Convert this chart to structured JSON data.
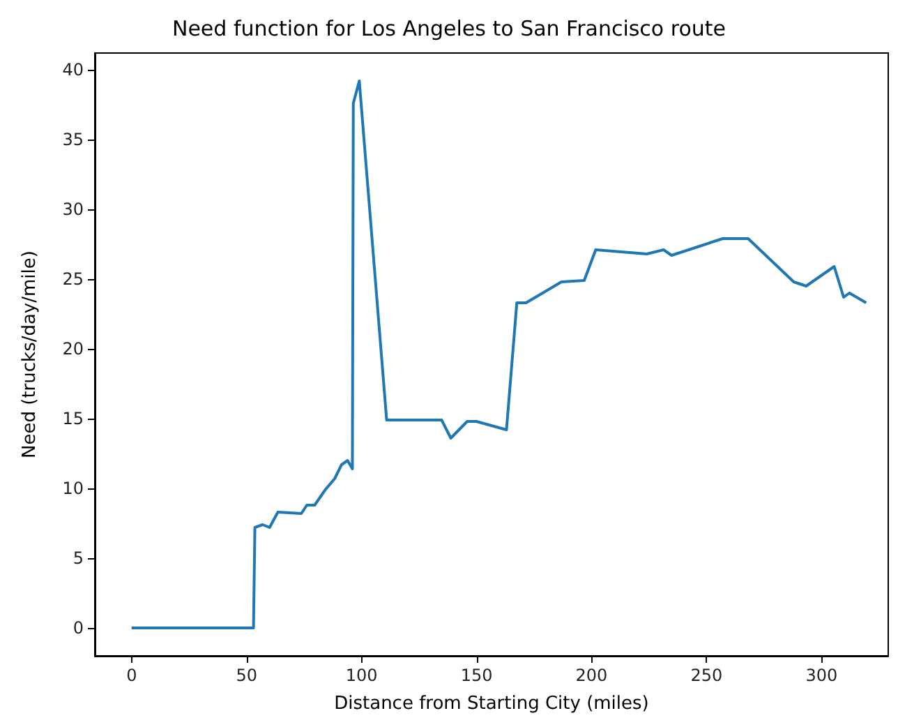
{
  "chart_data": {
    "type": "line",
    "title": "Need function for Los Angeles to San Francisco route",
    "xlabel": "Distance from Starting City (miles)",
    "ylabel": "Need (trucks/day/mile)",
    "x": [
      0,
      53,
      53.6,
      57,
      60,
      63.6,
      73.8,
      76.2,
      79.6,
      84.2,
      88.3,
      91.3,
      93.9,
      96,
      96.4,
      99,
      110.9,
      134.8,
      138.8,
      145.9,
      149.9,
      163,
      167.5,
      171.5,
      186.9,
      196.8,
      201.8,
      224,
      231.3,
      234.8,
      257,
      268.1,
      287.9,
      293.3,
      305.5,
      309.6,
      312.1,
      319.4
    ],
    "series": [
      {
        "color": "#1f77b4",
        "values": [
          0,
          0,
          7.2,
          7.4,
          7.2,
          8.3,
          8.2,
          8.8,
          8.8,
          9.9,
          10.7,
          11.7,
          12,
          11.4,
          37.6,
          39.2,
          14.9,
          14.9,
          13.6,
          14.8,
          14.8,
          14.2,
          23.3,
          23.3,
          24.8,
          24.9,
          27.1,
          26.8,
          27.1,
          26.7,
          27.9,
          27.9,
          24.8,
          24.5,
          25.9,
          23.7,
          24,
          23.3
        ]
      }
    ],
    "xlim": [
      -16,
      329
    ],
    "ylim": [
      -2,
      41.2
    ],
    "xticks": [
      0,
      50,
      100,
      150,
      200,
      250,
      300
    ],
    "yticks": [
      0,
      5,
      10,
      15,
      20,
      25,
      30,
      35,
      40
    ],
    "grid": false,
    "marker": "none",
    "line_style": "solid"
  }
}
